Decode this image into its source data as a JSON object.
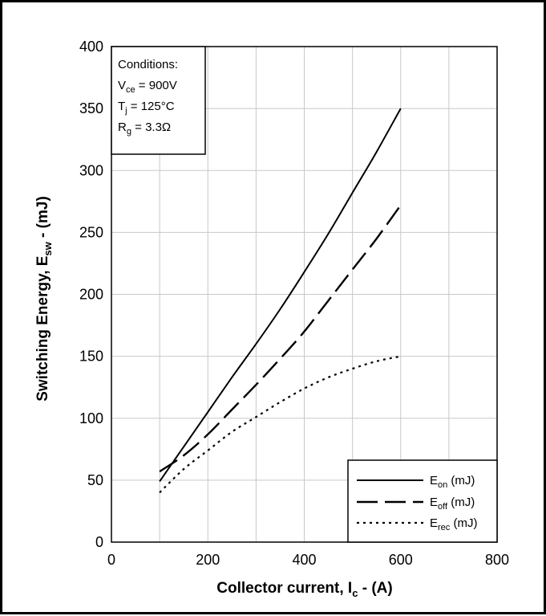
{
  "chart_data": {
    "type": "line",
    "xlabel_main": "Collector current, I",
    "xlabel_sub": "c",
    "xlabel_tail": " - (A)",
    "ylabel_main": "Switching Energy, E",
    "ylabel_sub": "sw",
    "ylabel_tail": " - (mJ)",
    "xlim": [
      0,
      800
    ],
    "ylim": [
      0,
      400
    ],
    "xticks": [
      0,
      200,
      400,
      600,
      800
    ],
    "yticks": [
      0,
      50,
      100,
      150,
      200,
      250,
      300,
      350,
      400
    ],
    "x_gridlines": [
      100,
      200,
      300,
      400,
      500,
      600,
      700
    ],
    "y_gridlines": [
      50,
      100,
      150,
      200,
      250,
      300,
      350
    ],
    "grid": true,
    "conditions": {
      "heading": "Conditions:",
      "vce_main": "V",
      "vce_sub": "ce",
      "vce_tail": " = 900V",
      "tj_main": "T",
      "tj_sub": "j",
      "tj_tail": " = 125°C",
      "rg_main": "R",
      "rg_sub": "g",
      "rg_tail": " = 3.3Ω"
    },
    "legend_position": "bottom-right",
    "series": [
      {
        "name": "E",
        "name_sub": "on",
        "name_tail": " (mJ)",
        "style": "solid",
        "x": [
          100,
          150,
          200,
          250,
          300,
          350,
          400,
          450,
          500,
          550,
          600
        ],
        "y": [
          49,
          77,
          105,
          133,
          160,
          188,
          218,
          249,
          282,
          315,
          350
        ]
      },
      {
        "name": "E",
        "name_sub": "off",
        "name_tail": " (mJ)",
        "style": "dash",
        "x": [
          100,
          150,
          200,
          250,
          300,
          350,
          400,
          450,
          500,
          550,
          600
        ],
        "y": [
          57,
          70,
          87,
          107,
          127,
          148,
          170,
          195,
          220,
          245,
          272
        ]
      },
      {
        "name": "E",
        "name_sub": "rec",
        "name_tail": " (mJ)",
        "style": "dot",
        "x": [
          100,
          150,
          200,
          250,
          300,
          350,
          400,
          450,
          500,
          550,
          600
        ],
        "y": [
          40,
          59,
          74,
          89,
          101,
          113,
          124,
          133,
          140,
          146,
          150
        ]
      }
    ]
  }
}
